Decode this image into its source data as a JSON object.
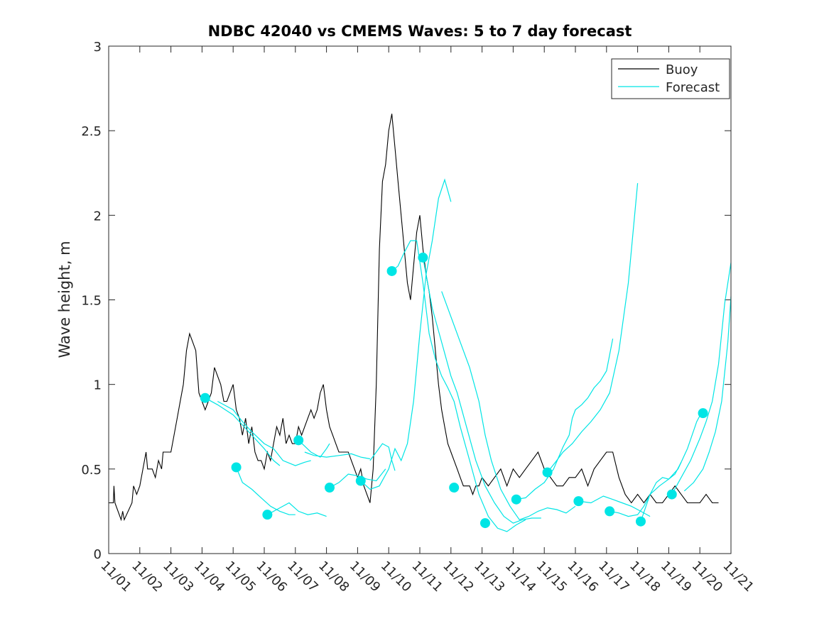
{
  "chart_data": {
    "type": "line",
    "title": "NDBC 42040 vs CMEMS Waves: 5 to 7 day forecast",
    "xlabel": "",
    "ylabel": "Wave height, m",
    "xlim": [
      0,
      20
    ],
    "ylim": [
      0,
      3
    ],
    "xticks": [
      0,
      1,
      2,
      3,
      4,
      5,
      6,
      7,
      8,
      9,
      10,
      11,
      12,
      13,
      14,
      15,
      16,
      17,
      18,
      19,
      20
    ],
    "xticklabels": [
      "11/01",
      "11/02",
      "11/03",
      "11/04",
      "11/05",
      "11/06",
      "11/07",
      "11/08",
      "11/09",
      "11/10",
      "11/11",
      "11/12",
      "11/13",
      "11/14",
      "11/15",
      "11/16",
      "11/17",
      "11/18",
      "11/19",
      "11/20",
      "11/21"
    ],
    "yticks": [
      0,
      0.5,
      1,
      1.5,
      2,
      2.5,
      3
    ],
    "yticklabels": [
      "0",
      "0.5",
      "1",
      "1.5",
      "2",
      "2.5",
      "3"
    ],
    "legend": {
      "position": "top-right",
      "entries": [
        "Buoy",
        "Forecast"
      ]
    },
    "colors": {
      "buoy": "#000000",
      "forecast": "#00e5e5",
      "axis": "#262626"
    },
    "series": [
      {
        "name": "Buoy",
        "x": [
          0,
          0.15,
          0.17,
          0.2,
          0.4,
          0.45,
          0.5,
          0.75,
          0.8,
          0.9,
          1.0,
          1.1,
          1.2,
          1.25,
          1.3,
          1.4,
          1.5,
          1.55,
          1.6,
          1.7,
          1.75,
          1.8,
          1.9,
          2.0,
          2.1,
          2.2,
          2.3,
          2.4,
          2.5,
          2.6,
          2.7,
          2.8,
          2.9,
          3.0,
          3.1,
          3.2,
          3.3,
          3.4,
          3.5,
          3.6,
          3.7,
          3.8,
          3.9,
          4.0,
          4.1,
          4.2,
          4.3,
          4.4,
          4.5,
          4.6,
          4.7,
          4.8,
          4.9,
          5.0,
          5.1,
          5.2,
          5.3,
          5.4,
          5.5,
          5.6,
          5.7,
          5.8,
          5.9,
          6.0,
          6.1,
          6.2,
          6.3,
          6.4,
          6.5,
          6.6,
          6.7,
          6.8,
          6.9,
          7.0,
          7.1,
          7.2,
          7.3,
          7.4,
          7.5,
          7.6,
          7.7,
          7.8,
          7.9,
          8.0,
          8.1,
          8.2,
          8.3,
          8.4,
          8.5,
          8.6,
          8.7,
          8.8,
          8.9,
          9.0,
          9.1,
          9.2,
          9.3,
          9.4,
          9.5,
          9.6,
          9.7,
          9.8,
          9.9,
          10.0,
          10.1,
          10.2,
          10.3,
          10.4,
          10.5,
          10.6,
          10.7,
          10.8,
          10.9,
          11.0,
          11.1,
          11.2,
          11.3,
          11.4,
          11.5,
          11.6,
          11.7,
          11.8,
          11.9,
          12.0,
          12.2,
          12.4,
          12.6,
          12.8,
          13.0,
          13.2,
          13.4,
          13.6,
          13.8,
          14.0,
          14.2,
          14.4,
          14.6,
          14.8,
          15.0,
          15.2,
          15.4,
          15.6,
          15.8,
          16.0,
          16.2,
          16.4,
          16.6,
          16.8,
          17.0,
          17.2,
          17.4,
          17.6,
          17.8,
          18.0,
          18.2,
          18.4,
          18.6,
          18.8,
          19.0,
          19.2,
          19.4,
          19.6
        ],
        "values": [
          0.3,
          0.3,
          0.4,
          0.3,
          0.2,
          0.25,
          0.2,
          0.3,
          0.4,
          0.35,
          0.4,
          0.5,
          0.6,
          0.5,
          0.5,
          0.5,
          0.45,
          0.5,
          0.55,
          0.5,
          0.6,
          0.6,
          0.6,
          0.6,
          0.7,
          0.8,
          0.9,
          1.0,
          1.2,
          1.3,
          1.25,
          1.2,
          0.95,
          0.9,
          0.85,
          0.9,
          0.95,
          1.1,
          1.05,
          1.0,
          0.9,
          0.9,
          0.95,
          1.0,
          0.85,
          0.8,
          0.7,
          0.8,
          0.65,
          0.75,
          0.6,
          0.55,
          0.55,
          0.5,
          0.6,
          0.55,
          0.65,
          0.75,
          0.7,
          0.8,
          0.65,
          0.7,
          0.65,
          0.65,
          0.75,
          0.7,
          0.75,
          0.8,
          0.85,
          0.8,
          0.85,
          0.95,
          1.0,
          0.85,
          0.75,
          0.7,
          0.65,
          0.6,
          0.6,
          0.6,
          0.6,
          0.55,
          0.5,
          0.45,
          0.5,
          0.4,
          0.35,
          0.3,
          0.5,
          1.0,
          1.8,
          2.2,
          2.3,
          2.5,
          2.6,
          2.4,
          2.2,
          2.0,
          1.8,
          1.6,
          1.5,
          1.7,
          1.9,
          2.0,
          1.8,
          1.65,
          1.55,
          1.4,
          1.2,
          1.0,
          0.85,
          0.75,
          0.65,
          0.6,
          0.55,
          0.5,
          0.45,
          0.4,
          0.4,
          0.4,
          0.35,
          0.4,
          0.4,
          0.45,
          0.4,
          0.45,
          0.5,
          0.4,
          0.5,
          0.45,
          0.5,
          0.55,
          0.6,
          0.5,
          0.45,
          0.4,
          0.4,
          0.45,
          0.45,
          0.5,
          0.4,
          0.5,
          0.55,
          0.6,
          0.6,
          0.45,
          0.35,
          0.3,
          0.35,
          0.3,
          0.35,
          0.3,
          0.3,
          0.35,
          0.4,
          0.35,
          0.3,
          0.3,
          0.3,
          0.35,
          0.3,
          0.3
        ]
      },
      {
        "name": "Forecast",
        "segments": [
          {
            "x": [
              3.1,
              3.5,
              4.0,
              4.5,
              5.0,
              5.3,
              5.5
            ],
            "values": [
              0.92,
              0.88,
              0.82,
              0.72,
              0.62,
              0.55,
              0.52
            ]
          },
          {
            "x": [
              3.5,
              4.0,
              4.3,
              4.6,
              5.0,
              5.3,
              5.6,
              6.0,
              6.3,
              6.5
            ],
            "values": [
              0.9,
              0.85,
              0.78,
              0.72,
              0.65,
              0.62,
              0.55,
              0.52,
              0.54,
              0.55
            ]
          },
          {
            "x": [
              4.1,
              4.3,
              4.6,
              4.9,
              5.2,
              5.5,
              5.8,
              6.0
            ],
            "values": [
              0.51,
              0.42,
              0.38,
              0.33,
              0.28,
              0.25,
              0.23,
              0.23
            ]
          },
          {
            "x": [
              5.1,
              5.5,
              5.8,
              6.1,
              6.4,
              6.7,
              7.0
            ],
            "values": [
              0.23,
              0.27,
              0.3,
              0.25,
              0.23,
              0.24,
              0.22
            ]
          },
          {
            "x": [
              6.1,
              6.5,
              6.8,
              7.0,
              7.1
            ],
            "values": [
              0.67,
              0.6,
              0.57,
              0.62,
              0.65
            ]
          },
          {
            "x": [
              6.3,
              6.6,
              7.0,
              7.4,
              7.8,
              8.1,
              8.4
            ],
            "values": [
              0.6,
              0.58,
              0.57,
              0.58,
              0.59,
              0.57,
              0.56
            ]
          },
          {
            "x": [
              7.1,
              7.4,
              7.7,
              8.0,
              8.3,
              8.6,
              8.9
            ],
            "values": [
              0.39,
              0.42,
              0.47,
              0.46,
              0.44,
              0.43,
              0.5
            ]
          },
          {
            "x": [
              8.1,
              8.4,
              8.7,
              9.0,
              9.2,
              9.4,
              9.6,
              9.8,
              10.0,
              10.2,
              10.4,
              10.6,
              10.8,
              11.0
            ],
            "values": [
              0.43,
              0.38,
              0.4,
              0.5,
              0.62,
              0.55,
              0.65,
              0.9,
              1.3,
              1.65,
              1.85,
              2.1,
              2.21,
              2.08
            ]
          },
          {
            "x": [
              8.4,
              8.6,
              8.8,
              9.0,
              9.1,
              9.2
            ],
            "values": [
              0.55,
              0.6,
              0.65,
              0.63,
              0.55,
              0.49
            ]
          },
          {
            "x": [
              9.1,
              9.3,
              9.5,
              9.7,
              9.9,
              10.1,
              10.3,
              10.5,
              10.7,
              10.9,
              11.1,
              11.3,
              11.6,
              11.9,
              12.2,
              12.5,
              12.8,
              13.1,
              13.4
            ],
            "values": [
              1.67,
              1.7,
              1.78,
              1.85,
              1.85,
              1.6,
              1.3,
              1.15,
              1.05,
              0.98,
              0.9,
              0.75,
              0.55,
              0.35,
              0.22,
              0.15,
              0.13,
              0.17,
              0.2
            ]
          },
          {
            "x": [
              10.1,
              10.4,
              10.7,
              11.0,
              11.2,
              11.5,
              11.8,
              12.1,
              12.4,
              12.7,
              13.0,
              13.3,
              13.6,
              13.9
            ],
            "values": [
              1.75,
              1.45,
              1.25,
              1.05,
              0.95,
              0.75,
              0.55,
              0.4,
              0.3,
              0.22,
              0.18,
              0.2,
              0.21,
              0.21
            ]
          },
          {
            "x": [
              10.7,
              11.0,
              11.3,
              11.6,
              11.9,
              12.1,
              12.3,
              12.6,
              12.9,
              13.2,
              13.5,
              13.8,
              14.1,
              14.4,
              14.7,
              15.0
            ],
            "values": [
              1.55,
              1.4,
              1.25,
              1.1,
              0.9,
              0.7,
              0.55,
              0.38,
              0.28,
              0.2,
              0.22,
              0.25,
              0.27,
              0.26,
              0.24,
              0.28
            ]
          },
          {
            "x": [
              13.1,
              13.4,
              13.7,
              14.0,
              14.3,
              14.6,
              14.8,
              14.9,
              15.0,
              15.2,
              15.4,
              15.6,
              15.8,
              16.0,
              16.2
            ],
            "values": [
              0.32,
              0.33,
              0.38,
              0.42,
              0.5,
              0.63,
              0.7,
              0.8,
              0.85,
              0.88,
              0.92,
              0.98,
              1.02,
              1.08,
              1.27
            ]
          },
          {
            "x": [
              14.1,
              14.4,
              14.6,
              14.9,
              15.2,
              15.5,
              15.8,
              16.1,
              16.4,
              16.7,
              17.0
            ],
            "values": [
              0.48,
              0.55,
              0.6,
              0.65,
              0.72,
              0.78,
              0.85,
              0.95,
              1.2,
              1.6,
              2.19
            ]
          },
          {
            "x": [
              15.1,
              15.5,
              15.9,
              16.2,
              16.5,
              16.8,
              17.1,
              17.4
            ],
            "values": [
              0.31,
              0.3,
              0.34,
              0.32,
              0.3,
              0.28,
              0.25,
              0.22
            ]
          },
          {
            "x": [
              16.1,
              16.4,
              16.7,
              17.0,
              17.2,
              17.4,
              17.6,
              17.8,
              18.0,
              18.2,
              18.4
            ],
            "values": [
              0.25,
              0.24,
              0.22,
              0.23,
              0.28,
              0.35,
              0.42,
              0.45,
              0.44,
              0.47,
              0.54
            ]
          },
          {
            "x": [
              17.1,
              17.4,
              17.7,
              18.0,
              18.3,
              18.6,
              18.9,
              19.1
            ],
            "values": [
              0.19,
              0.35,
              0.4,
              0.44,
              0.5,
              0.62,
              0.78,
              0.85
            ]
          },
          {
            "x": [
              18.1,
              18.4,
              18.7,
              19.0,
              19.2,
              19.4,
              19.6,
              19.8,
              20.0
            ],
            "values": [
              0.35,
              0.45,
              0.55,
              0.68,
              0.78,
              0.9,
              1.12,
              1.48,
              1.72
            ]
          },
          {
            "x": [
              18.5,
              18.8,
              19.1,
              19.3,
              19.5,
              19.7,
              19.9,
              20.0
            ],
            "values": [
              0.37,
              0.42,
              0.5,
              0.6,
              0.72,
              0.9,
              1.25,
              1.52
            ]
          }
        ],
        "markers": {
          "x": [
            3.1,
            4.1,
            5.1,
            6.1,
            7.1,
            8.1,
            9.1,
            10.1,
            11.1,
            12.1,
            13.1,
            14.1,
            15.1,
            16.1,
            17.1,
            18.1,
            19.1
          ],
          "values": [
            0.92,
            0.51,
            0.23,
            0.67,
            0.39,
            0.43,
            1.67,
            1.75,
            0.39,
            0.18,
            0.32,
            0.48,
            0.31,
            0.25,
            0.19,
            0.35,
            0.83
          ]
        }
      }
    ]
  }
}
